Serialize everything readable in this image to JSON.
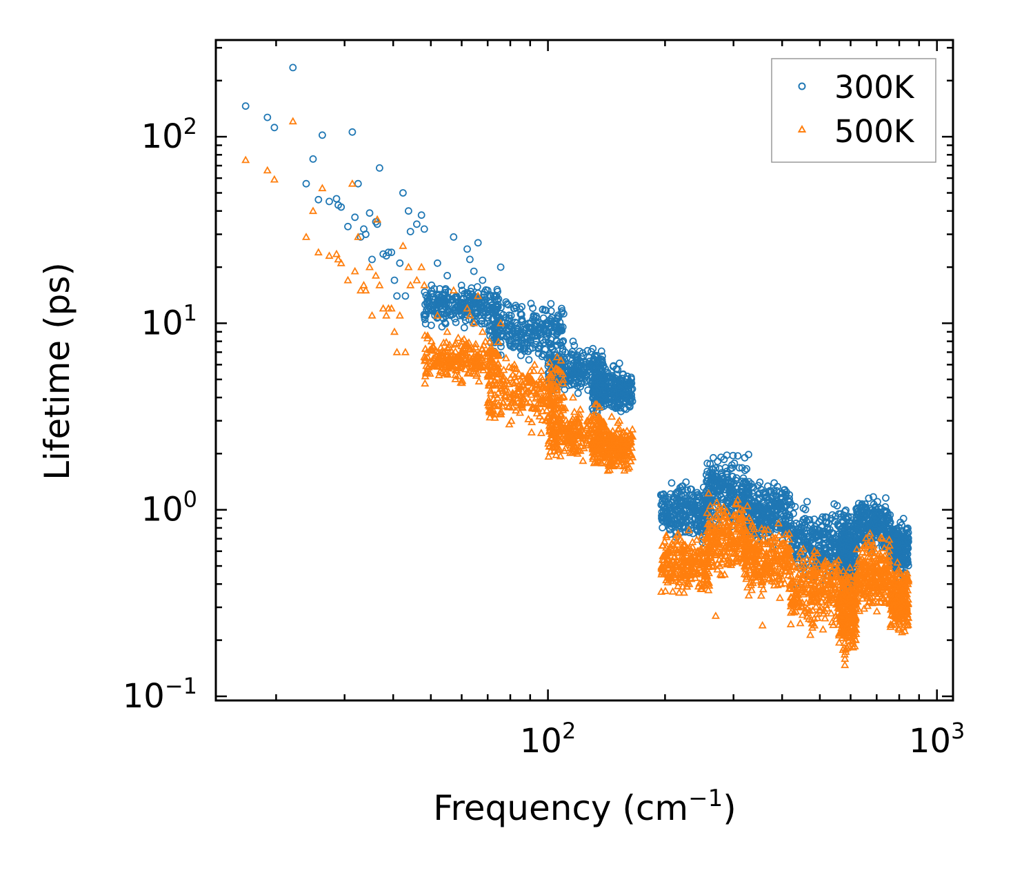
{
  "chart_data": {
    "type": "scatter",
    "xscale": "log",
    "yscale": "log",
    "xlim": [
      14,
      1100
    ],
    "ylim": [
      0.095,
      330
    ],
    "xlabel": {
      "main": "Frequency (cm",
      "sup": "−1",
      "tail": ")"
    },
    "ylabel": "Lifetime (ps)",
    "xticks": [
      {
        "value": 100,
        "base": "10",
        "exp": "2"
      },
      {
        "value": 1000,
        "base": "10",
        "exp": "3"
      }
    ],
    "yticks": [
      {
        "value": 0.1,
        "base": "10",
        "exp": "−1"
      },
      {
        "value": 1,
        "base": "10",
        "exp": "0"
      },
      {
        "value": 10,
        "base": "10",
        "exp": "1"
      },
      {
        "value": 100,
        "base": "10",
        "exp": "2"
      }
    ],
    "legend_position": "top-right",
    "series": [
      {
        "name": "300K",
        "color": "#1f77b4",
        "marker": "circle",
        "points": [
          [
            16.7,
            146
          ],
          [
            19.0,
            127
          ],
          [
            19.8,
            112
          ],
          [
            22.1,
            235
          ],
          [
            23.9,
            56
          ],
          [
            24.9,
            76
          ],
          [
            25.7,
            46
          ],
          [
            26.3,
            102
          ],
          [
            27.4,
            45
          ],
          [
            28.6,
            46.5
          ],
          [
            28.9,
            43
          ],
          [
            29.4,
            42
          ],
          [
            30.6,
            33
          ],
          [
            31.4,
            106
          ],
          [
            31.9,
            37
          ],
          [
            32.5,
            56
          ],
          [
            33.0,
            29
          ],
          [
            33.6,
            32
          ],
          [
            34.0,
            30
          ],
          [
            34.8,
            39
          ],
          [
            35.3,
            22
          ],
          [
            36.1,
            35
          ],
          [
            36.4,
            34
          ],
          [
            36.9,
            68
          ],
          [
            37.7,
            23.5
          ],
          [
            38.4,
            23
          ],
          [
            38.9,
            24
          ],
          [
            39.6,
            24
          ],
          [
            40.3,
            17
          ],
          [
            40.9,
            14
          ],
          [
            41.6,
            21
          ],
          [
            42.4,
            50
          ],
          [
            43.0,
            14
          ],
          [
            43.8,
            40
          ],
          [
            44.3,
            31
          ],
          [
            46.0,
            34
          ],
          [
            47.3,
            38
          ],
          [
            48.1,
            32
          ],
          [
            50.2,
            16
          ],
          [
            52.0,
            21
          ],
          [
            55.1,
            18
          ],
          [
            57.2,
            29
          ],
          [
            60.2,
            15
          ],
          [
            62.0,
            25
          ],
          [
            63.0,
            22
          ],
          [
            64.5,
            19
          ],
          [
            66.1,
            27
          ],
          [
            67.9,
            17
          ],
          [
            70.0,
            15
          ],
          [
            73.5,
            14
          ],
          [
            75.6,
            20
          ],
          [
            78.0,
            13
          ],
          [
            82.0,
            12
          ],
          [
            85.7,
            10.5
          ],
          [
            90.3,
            10
          ],
          [
            95.5,
            9.5
          ],
          [
            100.0,
            9
          ],
          [
            105.4,
            8
          ],
          [
            110.7,
            7
          ],
          [
            116.0,
            8
          ],
          [
            120.0,
            6
          ],
          [
            126.1,
            5.8
          ],
          [
            131.8,
            5.5
          ],
          [
            136.2,
            6.3
          ],
          [
            140.3,
            5.7
          ],
          [
            145.1,
            5.1
          ],
          [
            149.2,
            4.9
          ],
          [
            152.7,
            6.1
          ],
          [
            156.0,
            5.3
          ],
          [
            159.8,
            4.6
          ],
          [
            163.1,
            4.7
          ]
        ],
        "clusters": [
          {
            "xmin": 48,
            "xmax": 75,
            "ymin": 9,
            "ymax": 17
          },
          {
            "xmin": 70,
            "xmax": 110,
            "ymin": 6,
            "ymax": 14
          },
          {
            "xmin": 100,
            "xmax": 140,
            "ymin": 3.8,
            "ymax": 8
          },
          {
            "xmin": 130,
            "xmax": 165,
            "ymin": 3.0,
            "ymax": 6.2
          },
          {
            "xmin": 195,
            "xmax": 260,
            "ymin": 0.6,
            "ymax": 1.6
          },
          {
            "xmin": 255,
            "xmax": 330,
            "ymin": 0.7,
            "ymax": 2.2
          },
          {
            "xmin": 320,
            "xmax": 420,
            "ymin": 0.6,
            "ymax": 1.6
          },
          {
            "xmin": 420,
            "xmax": 560,
            "ymin": 0.35,
            "ymax": 1.2
          },
          {
            "xmin": 560,
            "xmax": 620,
            "ymin": 0.3,
            "ymax": 1.2
          },
          {
            "xmin": 620,
            "xmax": 760,
            "ymin": 0.55,
            "ymax": 1.25
          },
          {
            "xmin": 760,
            "xmax": 845,
            "ymin": 0.4,
            "ymax": 0.95
          }
        ]
      },
      {
        "name": "500K",
        "color": "#ff7f0e",
        "marker": "triangle",
        "points": [
          [
            16.7,
            75
          ],
          [
            19.0,
            66
          ],
          [
            19.8,
            59
          ],
          [
            22.1,
            121
          ],
          [
            23.9,
            29
          ],
          [
            24.9,
            40
          ],
          [
            25.7,
            24
          ],
          [
            26.3,
            53
          ],
          [
            27.4,
            23
          ],
          [
            28.6,
            23.5
          ],
          [
            28.9,
            22
          ],
          [
            29.4,
            21
          ],
          [
            30.6,
            17
          ],
          [
            31.4,
            56
          ],
          [
            31.9,
            19
          ],
          [
            32.5,
            29
          ],
          [
            33.0,
            15
          ],
          [
            33.6,
            16
          ],
          [
            34.0,
            15
          ],
          [
            34.8,
            20
          ],
          [
            35.3,
            11
          ],
          [
            36.1,
            18
          ],
          [
            36.4,
            36
          ],
          [
            36.9,
            16
          ],
          [
            37.7,
            12
          ],
          [
            38.4,
            11
          ],
          [
            38.9,
            12
          ],
          [
            39.6,
            12
          ],
          [
            40.3,
            9
          ],
          [
            40.9,
            7
          ],
          [
            41.6,
            11
          ],
          [
            42.4,
            26
          ],
          [
            43.0,
            7
          ],
          [
            43.8,
            20
          ],
          [
            44.3,
            16
          ],
          [
            46.0,
            17
          ],
          [
            47.3,
            20
          ],
          [
            48.1,
            16
          ],
          [
            50.2,
            8
          ],
          [
            52.0,
            11
          ],
          [
            55.1,
            9
          ],
          [
            57.2,
            15
          ],
          [
            60.2,
            8
          ],
          [
            62.0,
            12
          ],
          [
            63.0,
            11
          ],
          [
            64.5,
            10
          ],
          [
            66.1,
            14
          ],
          [
            67.9,
            9
          ],
          [
            70.0,
            7
          ],
          [
            73.5,
            7
          ],
          [
            75.6,
            10
          ],
          [
            78.0,
            6.5
          ],
          [
            82.0,
            6
          ],
          [
            85.7,
            5.2
          ],
          [
            90.3,
            5
          ],
          [
            95.5,
            4.7
          ],
          [
            100.0,
            4.5
          ],
          [
            105.4,
            4
          ],
          [
            110.7,
            3.5
          ],
          [
            116.0,
            4
          ],
          [
            120.0,
            3
          ],
          [
            126.1,
            2.8
          ],
          [
            131.8,
            2.7
          ],
          [
            136.2,
            3.1
          ],
          [
            140.3,
            2.8
          ],
          [
            145.1,
            2.5
          ],
          [
            149.2,
            2.4
          ],
          [
            152.7,
            3.0
          ],
          [
            156.0,
            2.6
          ],
          [
            159.8,
            2.3
          ],
          [
            163.1,
            2.4
          ],
          [
            356.0,
            0.24
          ],
          [
            270.0,
            0.27
          ]
        ],
        "clusters": [
          {
            "xmin": 48,
            "xmax": 75,
            "ymin": 4.5,
            "ymax": 9
          },
          {
            "xmin": 70,
            "xmax": 110,
            "ymin": 2.5,
            "ymax": 7
          },
          {
            "xmin": 100,
            "xmax": 140,
            "ymin": 1.7,
            "ymax": 4
          },
          {
            "xmin": 130,
            "xmax": 165,
            "ymin": 1.45,
            "ymax": 3.2
          },
          {
            "xmin": 195,
            "xmax": 260,
            "ymin": 0.32,
            "ymax": 0.85
          },
          {
            "xmin": 255,
            "xmax": 330,
            "ymin": 0.4,
            "ymax": 1.3
          },
          {
            "xmin": 320,
            "xmax": 420,
            "ymin": 0.3,
            "ymax": 0.9
          },
          {
            "xmin": 420,
            "xmax": 560,
            "ymin": 0.2,
            "ymax": 0.7
          },
          {
            "xmin": 560,
            "xmax": 620,
            "ymin": 0.14,
            "ymax": 0.6
          },
          {
            "xmin": 620,
            "xmax": 760,
            "ymin": 0.25,
            "ymax": 0.8
          },
          {
            "xmin": 760,
            "xmax": 845,
            "ymin": 0.2,
            "ymax": 0.55
          }
        ]
      }
    ]
  }
}
